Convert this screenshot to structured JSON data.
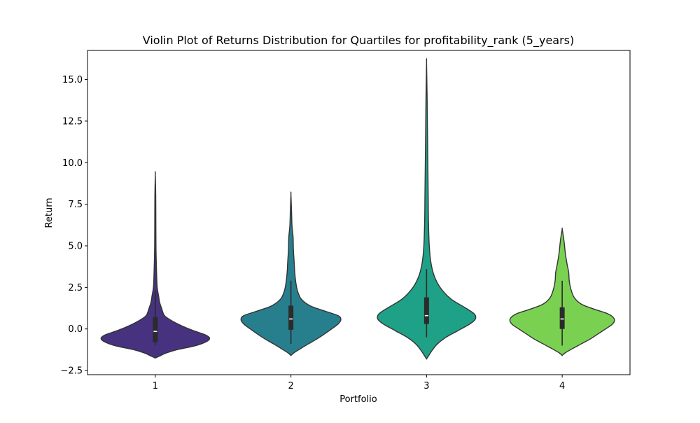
{
  "chart_data": {
    "type": "violin",
    "title": "Violin Plot of Returns Distribution for Quartiles for profitability_rank (5_years)",
    "xlabel": "Portfolio",
    "ylabel": "Return",
    "categories": [
      "1",
      "2",
      "3",
      "4"
    ],
    "ylim": [
      -2.75,
      16.75
    ],
    "yticks": [
      -2.5,
      0.0,
      2.5,
      5.0,
      7.5,
      10.0,
      12.5,
      15.0
    ],
    "ytick_labels": [
      "−2.5",
      "0.0",
      "2.5",
      "5.0",
      "7.5",
      "10.0",
      "12.5",
      "15.0"
    ],
    "grid": false,
    "legend": "none",
    "colors": [
      "#46327e",
      "#277f8e",
      "#1fa187",
      "#7ad151"
    ],
    "violins": [
      {
        "category": "1",
        "color": "#46327e",
        "min": -1.0,
        "q1": -0.8,
        "median": -0.15,
        "q3": 0.7,
        "whisker_high": 2.3,
        "density_profile": [
          [
            -1.75,
            0
          ],
          [
            -1.6,
            0.1
          ],
          [
            -1.45,
            0.2
          ],
          [
            -1.25,
            0.4
          ],
          [
            -1.0,
            0.75
          ],
          [
            -0.75,
            0.95
          ],
          [
            -0.55,
            1.0
          ],
          [
            -0.35,
            0.92
          ],
          [
            -0.1,
            0.7
          ],
          [
            0.2,
            0.48
          ],
          [
            0.5,
            0.3
          ],
          [
            0.8,
            0.17
          ],
          [
            1.2,
            0.12
          ],
          [
            1.6,
            0.08
          ],
          [
            2.0,
            0.06
          ],
          [
            2.5,
            0.035
          ],
          [
            3.2,
            0.025
          ],
          [
            4.0,
            0.018
          ],
          [
            5.0,
            0.012
          ],
          [
            6.5,
            0.01
          ],
          [
            8.0,
            0.008
          ],
          [
            9.3,
            0
          ]
        ]
      },
      {
        "category": "2",
        "color": "#277f8e",
        "min": -0.9,
        "q1": -0.05,
        "median": 0.6,
        "q3": 1.4,
        "whisker_high": 2.9,
        "density_profile": [
          [
            -1.6,
            0
          ],
          [
            -1.45,
            0.05
          ],
          [
            -1.2,
            0.17
          ],
          [
            -0.9,
            0.32
          ],
          [
            -0.6,
            0.48
          ],
          [
            -0.3,
            0.62
          ],
          [
            0.0,
            0.75
          ],
          [
            0.3,
            0.87
          ],
          [
            0.55,
            0.92
          ],
          [
            0.8,
            0.87
          ],
          [
            1.1,
            0.6
          ],
          [
            1.4,
            0.35
          ],
          [
            1.8,
            0.19
          ],
          [
            2.3,
            0.12
          ],
          [
            2.8,
            0.09
          ],
          [
            3.4,
            0.07
          ],
          [
            4.0,
            0.06
          ],
          [
            4.8,
            0.045
          ],
          [
            5.5,
            0.04
          ],
          [
            6.2,
            0.02
          ],
          [
            7.0,
            0.012
          ],
          [
            8.1,
            0
          ]
        ]
      },
      {
        "category": "3",
        "color": "#1fa187",
        "min": -0.5,
        "q1": 0.3,
        "median": 0.8,
        "q3": 1.9,
        "whisker_high": 3.6,
        "density_profile": [
          [
            -1.8,
            0
          ],
          [
            -1.6,
            0.04
          ],
          [
            -1.3,
            0.1
          ],
          [
            -0.9,
            0.2
          ],
          [
            -0.5,
            0.36
          ],
          [
            -0.1,
            0.58
          ],
          [
            0.3,
            0.8
          ],
          [
            0.6,
            0.9
          ],
          [
            0.9,
            0.88
          ],
          [
            1.3,
            0.7
          ],
          [
            1.8,
            0.45
          ],
          [
            2.5,
            0.25
          ],
          [
            3.2,
            0.14
          ],
          [
            4.0,
            0.08
          ],
          [
            5.0,
            0.05
          ],
          [
            6.5,
            0.035
          ],
          [
            8.0,
            0.03
          ],
          [
            9.5,
            0.025
          ],
          [
            11.0,
            0.02
          ],
          [
            12.5,
            0.015
          ],
          [
            14.0,
            0.01
          ],
          [
            16.0,
            0
          ]
        ]
      },
      {
        "category": "4",
        "color": "#7ad151",
        "min": -1.0,
        "q1": 0.0,
        "median": 0.6,
        "q3": 1.3,
        "whisker_high": 2.9,
        "density_profile": [
          [
            -1.6,
            0
          ],
          [
            -1.45,
            0.05
          ],
          [
            -1.2,
            0.18
          ],
          [
            -0.9,
            0.35
          ],
          [
            -0.6,
            0.52
          ],
          [
            -0.3,
            0.66
          ],
          [
            0.0,
            0.8
          ],
          [
            0.3,
            0.93
          ],
          [
            0.6,
            0.96
          ],
          [
            0.9,
            0.85
          ],
          [
            1.2,
            0.58
          ],
          [
            1.5,
            0.35
          ],
          [
            1.9,
            0.22
          ],
          [
            2.4,
            0.16
          ],
          [
            2.9,
            0.13
          ],
          [
            3.4,
            0.12
          ],
          [
            3.9,
            0.09
          ],
          [
            4.5,
            0.06
          ],
          [
            5.1,
            0.04
          ],
          [
            5.5,
            0.025
          ],
          [
            6.0,
            0
          ]
        ]
      }
    ]
  }
}
